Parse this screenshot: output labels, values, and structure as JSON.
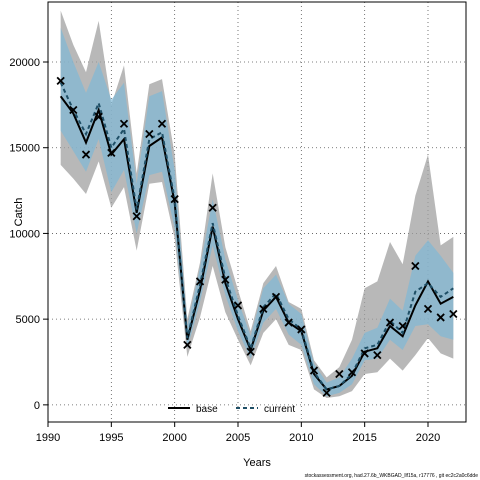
{
  "chart_data": {
    "type": "line",
    "xlabel": "Years",
    "ylabel": "Catch",
    "xlim": [
      1990,
      2023
    ],
    "ylim": [
      -1000,
      23500
    ],
    "xticks": [
      "1990",
      "1995",
      "2000",
      "2005",
      "2010",
      "2015",
      "2020"
    ],
    "xtick_values": [
      1990,
      1995,
      2000,
      2005,
      2010,
      2015,
      2020
    ],
    "yticks": [
      "0",
      "5000",
      "10000",
      "15000",
      "20000"
    ],
    "ytick_values": [
      0,
      5000,
      10000,
      15000,
      20000
    ],
    "grid": true,
    "legend_position": "bottom-center",
    "footer_text": "stockassessment.org, had.27.6b_WKBGAD_llf15a, r17776 , git ec2c2a0c6dde",
    "years": [
      1991,
      1992,
      1993,
      1994,
      1995,
      1996,
      1997,
      1998,
      1999,
      2000,
      2001,
      2002,
      2003,
      2004,
      2005,
      2006,
      2007,
      2008,
      2009,
      2010,
      2011,
      2012,
      2013,
      2014,
      2015,
      2016,
      2017,
      2018,
      2019,
      2020,
      2021,
      2022
    ],
    "series": [
      {
        "name": "base",
        "color": "#000000",
        "band_color": "#a0a0a0",
        "values": [
          18000,
          17000,
          15300,
          17200,
          14600,
          15500,
          11200,
          15100,
          15600,
          11800,
          3800,
          6700,
          10400,
          7100,
          5000,
          3200,
          5500,
          6300,
          4800,
          4300,
          1800,
          900,
          1100,
          1700,
          3100,
          3300,
          4600,
          4000,
          5800,
          7200,
          5900,
          6300
        ],
        "lower": [
          14000,
          13200,
          12300,
          14200,
          11500,
          12700,
          9000,
          12900,
          13000,
          9700,
          2800,
          5100,
          8100,
          5400,
          3800,
          2300,
          4200,
          5000,
          3500,
          3200,
          900,
          400,
          500,
          800,
          1800,
          1900,
          2700,
          2000,
          2900,
          3900,
          3000,
          2700
        ],
        "upper": [
          23000,
          21000,
          19400,
          22400,
          17500,
          19800,
          13500,
          18700,
          19000,
          14600,
          5000,
          8300,
          13500,
          9200,
          6700,
          4300,
          7100,
          8100,
          6000,
          5600,
          2600,
          1600,
          2200,
          3800,
          6800,
          7200,
          9500,
          8200,
          12200,
          14600,
          9300,
          9800
        ]
      },
      {
        "name": "current",
        "color": "#1f4f66",
        "band_color": "#7fb8d6",
        "values": [
          18800,
          17200,
          15800,
          17600,
          15000,
          16100,
          11400,
          15500,
          15900,
          12000,
          3900,
          7000,
          10600,
          7400,
          5200,
          3300,
          5700,
          6500,
          5000,
          4400,
          1900,
          900,
          1100,
          1800,
          3300,
          3500,
          4900,
          4200,
          6600,
          7100,
          6300,
          6800
        ],
        "lower": [
          16000,
          14800,
          13600,
          15500,
          12400,
          13700,
          10000,
          13400,
          13600,
          10300,
          3300,
          6000,
          9300,
          6400,
          4300,
          2700,
          4800,
          5600,
          4100,
          3500,
          1200,
          500,
          700,
          1200,
          2600,
          2700,
          3800,
          3200,
          4600,
          4700,
          4000,
          3800
        ],
        "upper": [
          22000,
          20000,
          18200,
          20000,
          17800,
          18800,
          12900,
          18000,
          18300,
          13700,
          4600,
          8000,
          12000,
          8500,
          6100,
          4000,
          6800,
          7600,
          5900,
          5300,
          2400,
          1300,
          1600,
          2700,
          4200,
          4500,
          6200,
          5500,
          8700,
          9600,
          8700,
          7700
        ]
      }
    ],
    "observed": {
      "marker": "x",
      "values": [
        18900,
        17200,
        14600,
        16800,
        14700,
        16400,
        11000,
        15800,
        16400,
        12000,
        3500,
        7200,
        11500,
        7300,
        5800,
        3100,
        5600,
        6300,
        4800,
        4400,
        2000,
        700,
        1800,
        1900,
        3000,
        2900,
        4800,
        4600,
        8100,
        5600,
        5100,
        5300
      ]
    }
  }
}
